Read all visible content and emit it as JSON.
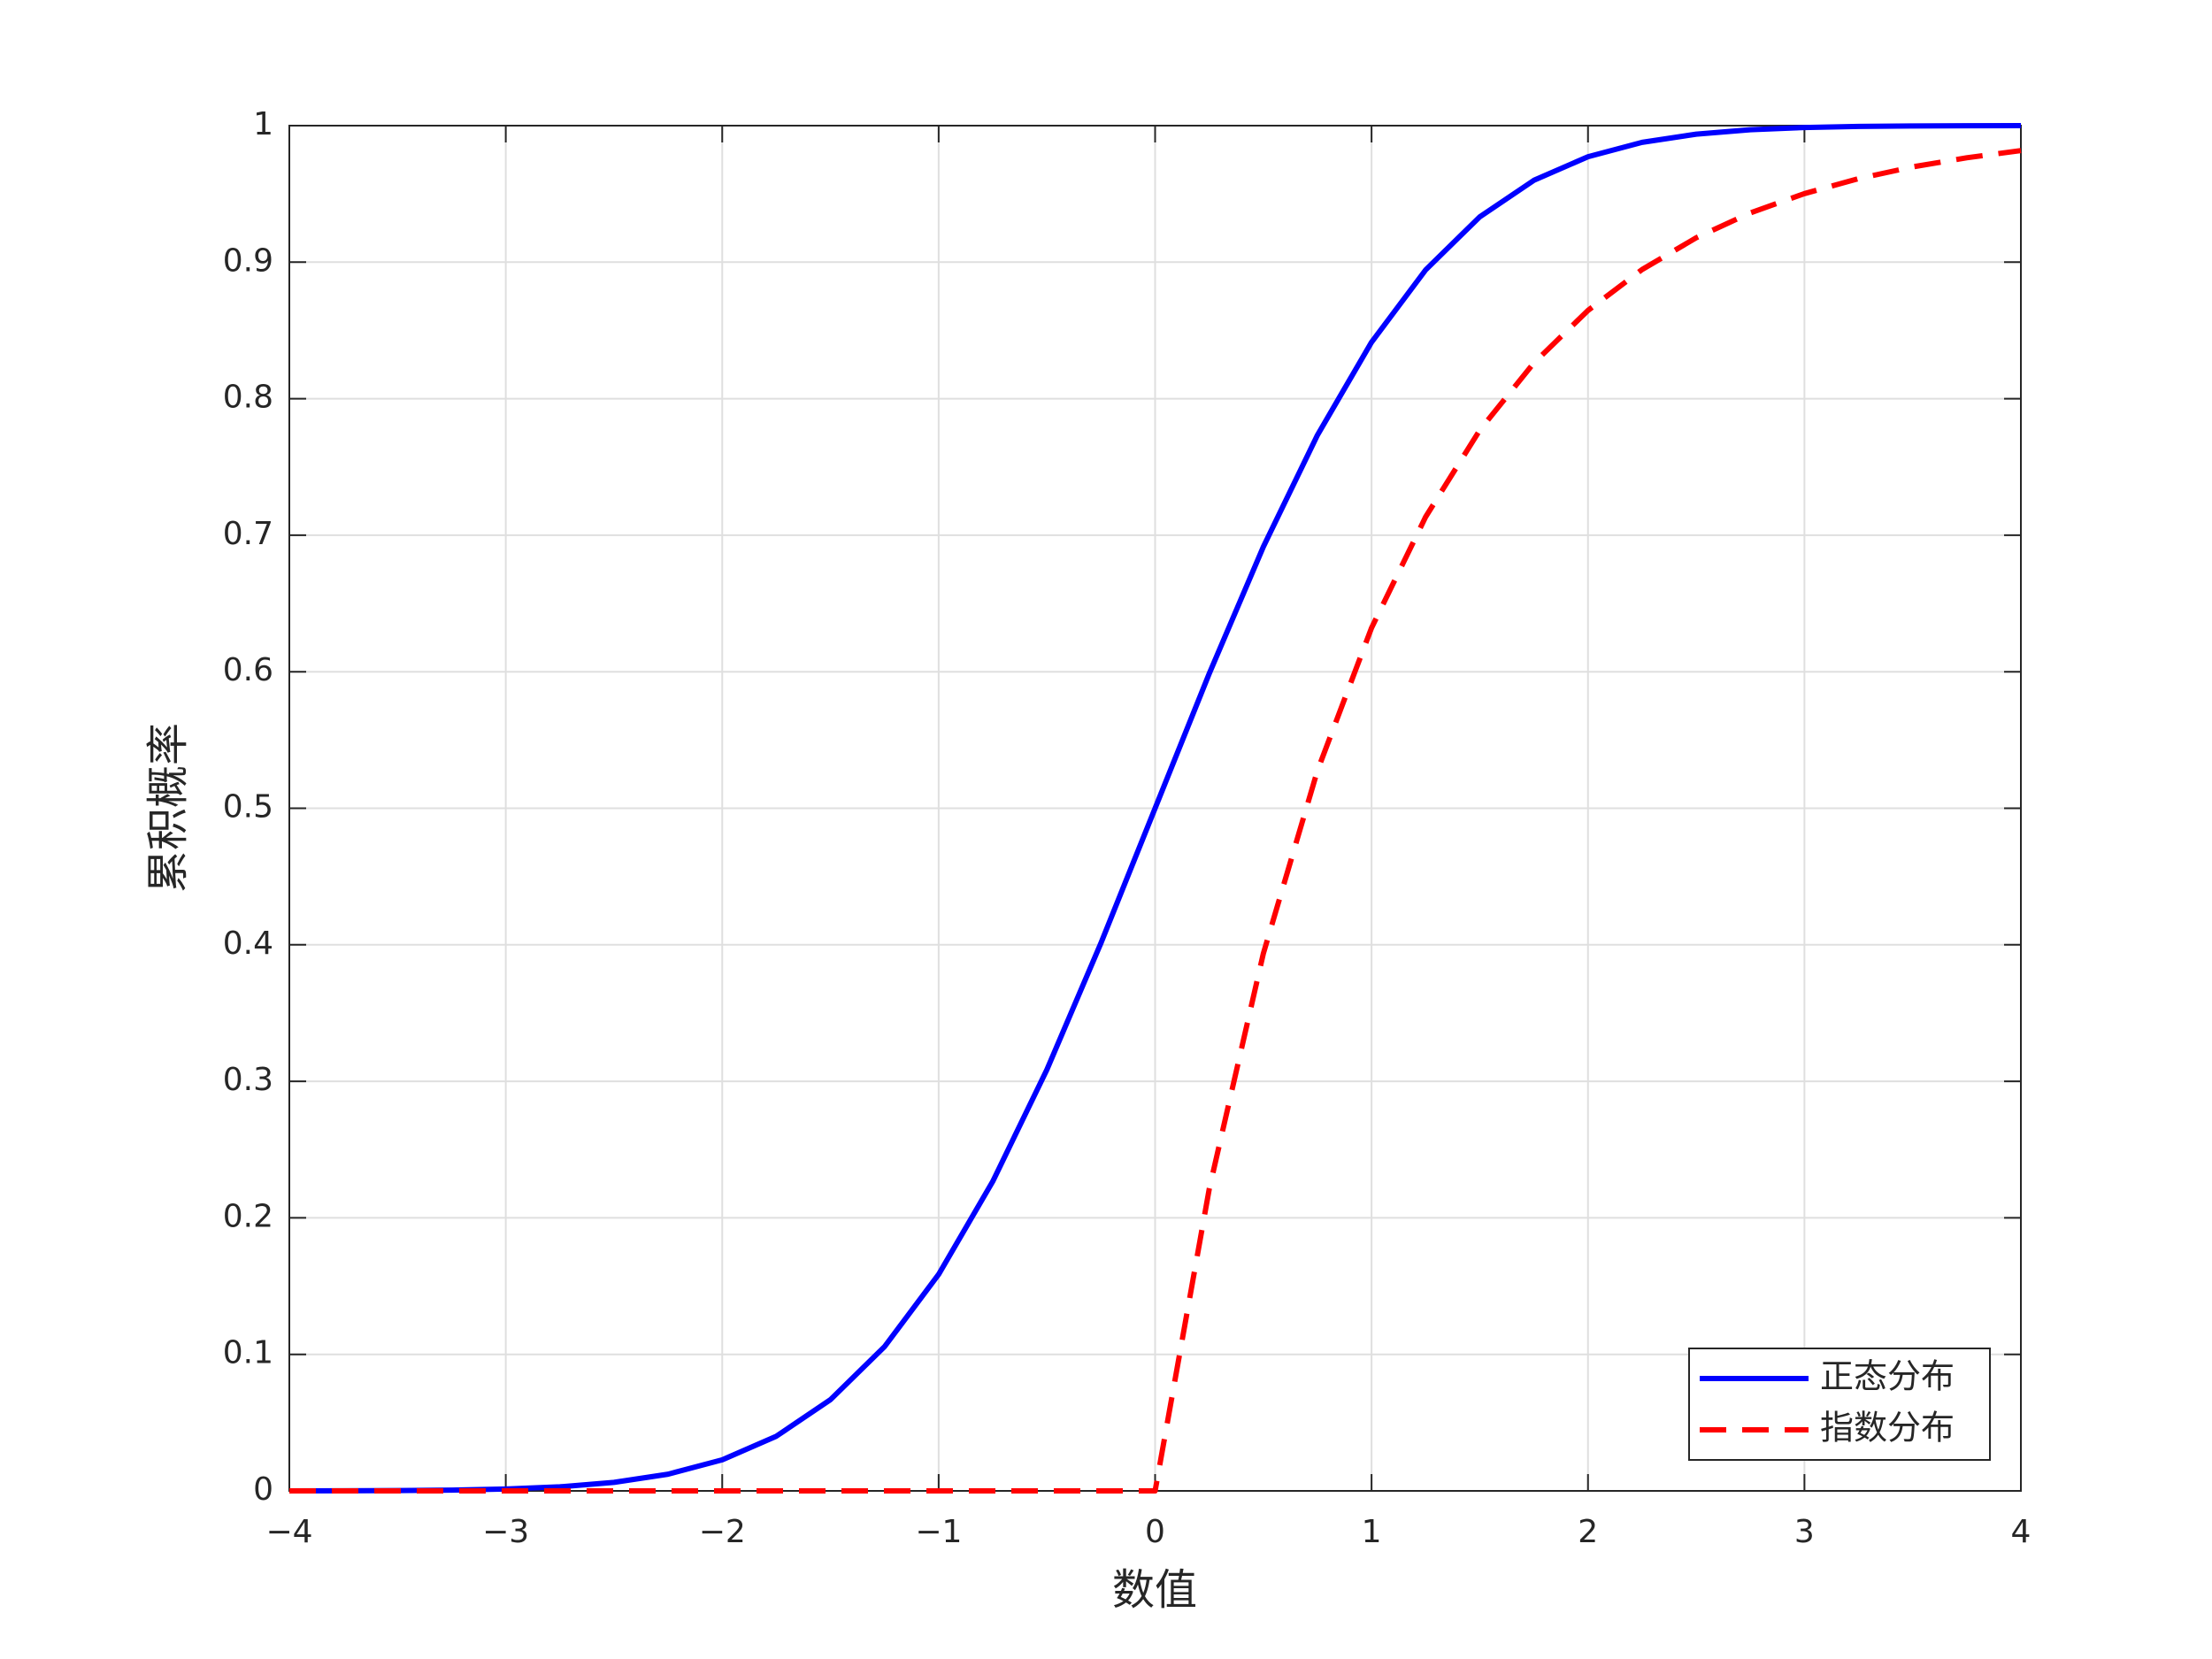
{
  "chart_data": {
    "type": "line",
    "xlabel": "数值",
    "ylabel": "累积概率",
    "x": [
      -4,
      -3.75,
      -3.5,
      -3.25,
      -3,
      -2.75,
      -2.5,
      -2.25,
      -2,
      -1.75,
      -1.5,
      -1.25,
      -1,
      -0.75,
      -0.5,
      -0.25,
      0,
      0.25,
      0.5,
      0.75,
      1,
      1.25,
      1.5,
      1.75,
      2,
      2.25,
      2.5,
      2.75,
      3,
      3.25,
      3.5,
      3.75,
      4
    ],
    "series": [
      {
        "name": "正态分布",
        "color": "#0000ff",
        "dash": false,
        "values": [
          3e-05,
          9e-05,
          0.00023,
          0.00058,
          0.00135,
          0.00298,
          0.00621,
          0.01222,
          0.02275,
          0.04006,
          0.06681,
          0.10565,
          0.15866,
          0.22663,
          0.30854,
          0.40129,
          0.5,
          0.59871,
          0.69146,
          0.77337,
          0.84134,
          0.89435,
          0.93319,
          0.95994,
          0.97725,
          0.98778,
          0.99379,
          0.99702,
          0.99865,
          0.99942,
          0.99977,
          0.99991,
          0.99997
        ]
      },
      {
        "name": "指数分布",
        "color": "#ff0000",
        "dash": true,
        "values": [
          0,
          0,
          0,
          0,
          0,
          0,
          0,
          0,
          0,
          0,
          0,
          0,
          0,
          0,
          0,
          0,
          0,
          0.2212,
          0.3935,
          0.5276,
          0.6321,
          0.7135,
          0.7769,
          0.8262,
          0.8647,
          0.8946,
          0.9179,
          0.9361,
          0.9502,
          0.9612,
          0.9698,
          0.9765,
          0.9817
        ]
      }
    ],
    "xlim": [
      -4,
      4
    ],
    "xticks": [
      {
        "value": -4,
        "label": "−4"
      },
      {
        "value": -3,
        "label": "−3"
      },
      {
        "value": -2,
        "label": "−2"
      },
      {
        "value": -1,
        "label": "−1"
      },
      0,
      1,
      2,
      3,
      4
    ],
    "ylim": [
      0,
      1
    ],
    "yticks": [
      0,
      0.1,
      0.2,
      0.3,
      0.4,
      0.5,
      0.6,
      0.7,
      0.8,
      0.9,
      1
    ],
    "grid": true,
    "legend": "lower right"
  }
}
